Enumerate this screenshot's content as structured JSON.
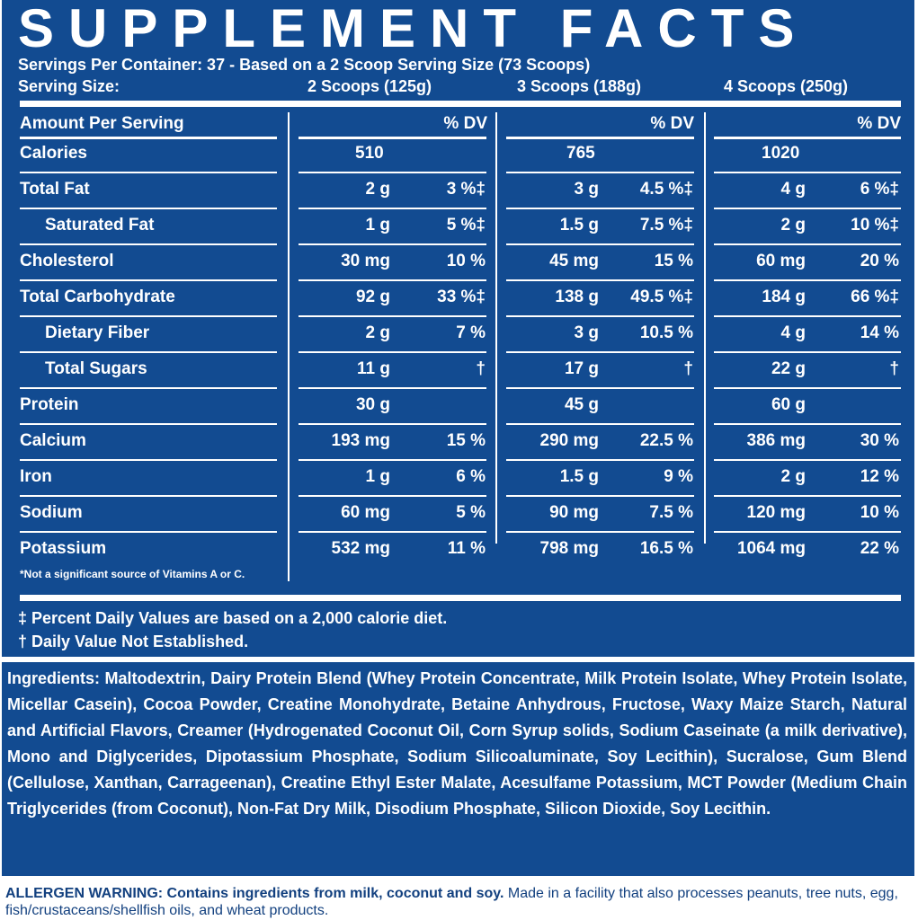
{
  "title": "SUPPLEMENT FACTS",
  "servings_per_container": "Servings Per Container: 37 - Based on a 2 Scoop Serving Size (73 Scoops)",
  "serving_size_label": "Serving Size:",
  "serving_sizes": [
    "2 Scoops (125g)",
    "3 Scoops (188g)",
    "4 Scoops (250g)"
  ],
  "amount_header": "Amount Per Serving",
  "dv_header": "% DV",
  "rows": [
    {
      "name": "Calories",
      "indent": false,
      "values": [
        [
          "510",
          ""
        ],
        [
          "765",
          ""
        ],
        [
          "1020",
          ""
        ]
      ]
    },
    {
      "name": "Total Fat",
      "indent": false,
      "values": [
        [
          "2 g",
          "3 %‡"
        ],
        [
          "3 g",
          "4.5 %‡"
        ],
        [
          "4 g",
          "6 %‡"
        ]
      ]
    },
    {
      "name": "Saturated Fat",
      "indent": true,
      "values": [
        [
          "1 g",
          "5 %‡"
        ],
        [
          "1.5 g",
          "7.5 %‡"
        ],
        [
          "2 g",
          "10 %‡"
        ]
      ]
    },
    {
      "name": "Cholesterol",
      "indent": false,
      "values": [
        [
          "30 mg",
          "10 %"
        ],
        [
          "45 mg",
          "15 %"
        ],
        [
          "60 mg",
          "20 %"
        ]
      ]
    },
    {
      "name": "Total Carbohydrate",
      "indent": false,
      "values": [
        [
          "92 g",
          "33 %‡"
        ],
        [
          "138 g",
          "49.5 %‡"
        ],
        [
          "184 g",
          "66 %‡"
        ]
      ]
    },
    {
      "name": "Dietary Fiber",
      "indent": true,
      "values": [
        [
          "2 g",
          "7 %"
        ],
        [
          "3 g",
          "10.5 %"
        ],
        [
          "4 g",
          "14 %"
        ]
      ]
    },
    {
      "name": "Total Sugars",
      "indent": true,
      "values": [
        [
          "11 g",
          "†"
        ],
        [
          "17 g",
          "†"
        ],
        [
          "22 g",
          "†"
        ]
      ]
    },
    {
      "name": "Protein",
      "indent": false,
      "values": [
        [
          "30 g",
          ""
        ],
        [
          "45 g",
          ""
        ],
        [
          "60 g",
          ""
        ]
      ]
    },
    {
      "name": "Calcium",
      "indent": false,
      "values": [
        [
          "193 mg",
          "15 %"
        ],
        [
          "290 mg",
          "22.5 %"
        ],
        [
          "386 mg",
          "30 %"
        ]
      ]
    },
    {
      "name": "Iron",
      "indent": false,
      "values": [
        [
          "1 g",
          "6 %"
        ],
        [
          "1.5 g",
          "9 %"
        ],
        [
          "2 g",
          "12 %"
        ]
      ]
    },
    {
      "name": "Sodium",
      "indent": false,
      "values": [
        [
          "60 mg",
          "5 %"
        ],
        [
          "90 mg",
          "7.5 %"
        ],
        [
          "120 mg",
          "10 %"
        ]
      ]
    },
    {
      "name": "Potassium",
      "indent": false,
      "values": [
        [
          "532 mg",
          "11 %"
        ],
        [
          "798 mg",
          "16.5 %"
        ],
        [
          "1064 mg",
          "22 %"
        ]
      ]
    }
  ],
  "note": "*Not a significant source of Vitamins A or C.",
  "footnotes": [
    "‡ Percent Daily Values are based on a 2,000 calorie diet.",
    "† Daily Value Not Established."
  ],
  "ingredients_label": "Ingredients:",
  "ingredients": "Maltodextrin, Dairy Protein Blend (Whey Protein Concentrate, Milk Protein Isolate, Whey Protein Isolate, Micellar Casein), Cocoa Powder, Creatine Monohydrate, Betaine Anhydrous, Fructose, Waxy Maize Starch, Natural and Artificial Flavors, Creamer (Hydrogenated Coconut Oil, Corn Syrup solids, Sodium Caseinate (a milk derivative), Mono and Diglycerides, Dipotassium Phosphate, Sodium Silicoaluminate, Soy Lecithin), Sucralose, Gum Blend (Cellulose, Xanthan, Carrageenan), Creatine Ethyl Ester Malate, Acesulfame Potassium, MCT Powder (Medium Chain Triglycerides (from Coconut), Non-Fat Dry Milk, Disodium Phosphate, Silicon Dioxide, Soy Lecithin.",
  "allergen_label": "ALLERGEN WARNING: Contains ingredients from milk, coconut and soy.",
  "allergen_rest": "Made in a facility that also processes peanuts, tree nuts, egg, fish/crustaceans/shellfish oils, and wheat products.",
  "colors": {
    "panel": "#124b91",
    "text": "#ffffff",
    "allergen_text": "#12407f"
  }
}
